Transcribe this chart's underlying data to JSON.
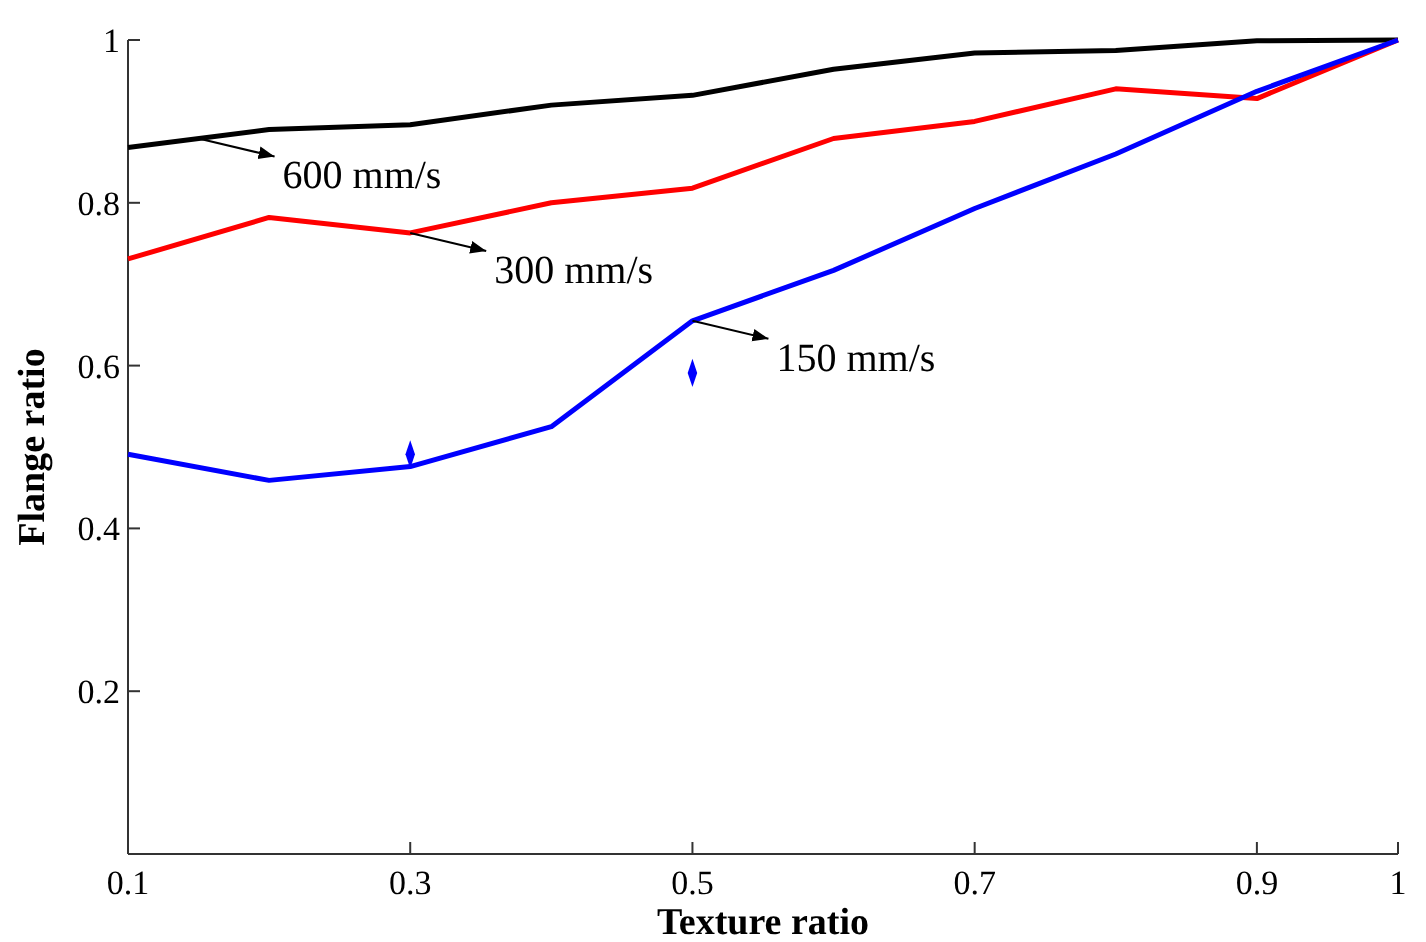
{
  "chart_data": {
    "type": "line",
    "xlabel": "Texture ratio",
    "ylabel": "Flange ratio",
    "x": [
      0.1,
      0.2,
      0.3,
      0.4,
      0.5,
      0.6,
      0.7,
      0.8,
      0.9,
      1.0
    ],
    "series": [
      {
        "color": "#000000",
        "values": [
          0.868,
          0.89,
          0.896,
          0.92,
          0.932,
          0.964,
          0.984,
          0.987,
          0.999,
          1.0
        ]
      },
      {
        "color": "#ff0000",
        "values": [
          0.731,
          0.782,
          0.763,
          0.8,
          0.818,
          0.879,
          0.9,
          0.94,
          0.928,
          1.0
        ]
      },
      {
        "color": "#0000ff",
        "values": [
          0.491,
          0.459,
          0.476,
          0.525,
          0.655,
          0.717,
          0.793,
          0.86,
          0.937,
          1.0
        ]
      },
      {
        "type": "scatter",
        "marker": "diamond",
        "color": "#0000ff",
        "x": [
          0.3,
          0.5
        ],
        "values": [
          0.491,
          0.591
        ]
      }
    ],
    "marker": "none",
    "line_style": "solid",
    "xlim": [
      0.1,
      1.0
    ],
    "ylim": [
      0,
      1
    ],
    "xticks": [
      0.1,
      0.3,
      0.5,
      0.7,
      0.9,
      1
    ],
    "yticks": [
      0.2,
      0.4,
      0.6,
      0.8,
      1
    ],
    "annotations": [
      {
        "text": "600 mm/s",
        "x": 0.15,
        "y": 0.879
      },
      {
        "text": "300 mm/s",
        "x": 0.3,
        "y": 0.763
      },
      {
        "text": "150 mm/s",
        "x": 0.5,
        "y": 0.655
      }
    ]
  }
}
